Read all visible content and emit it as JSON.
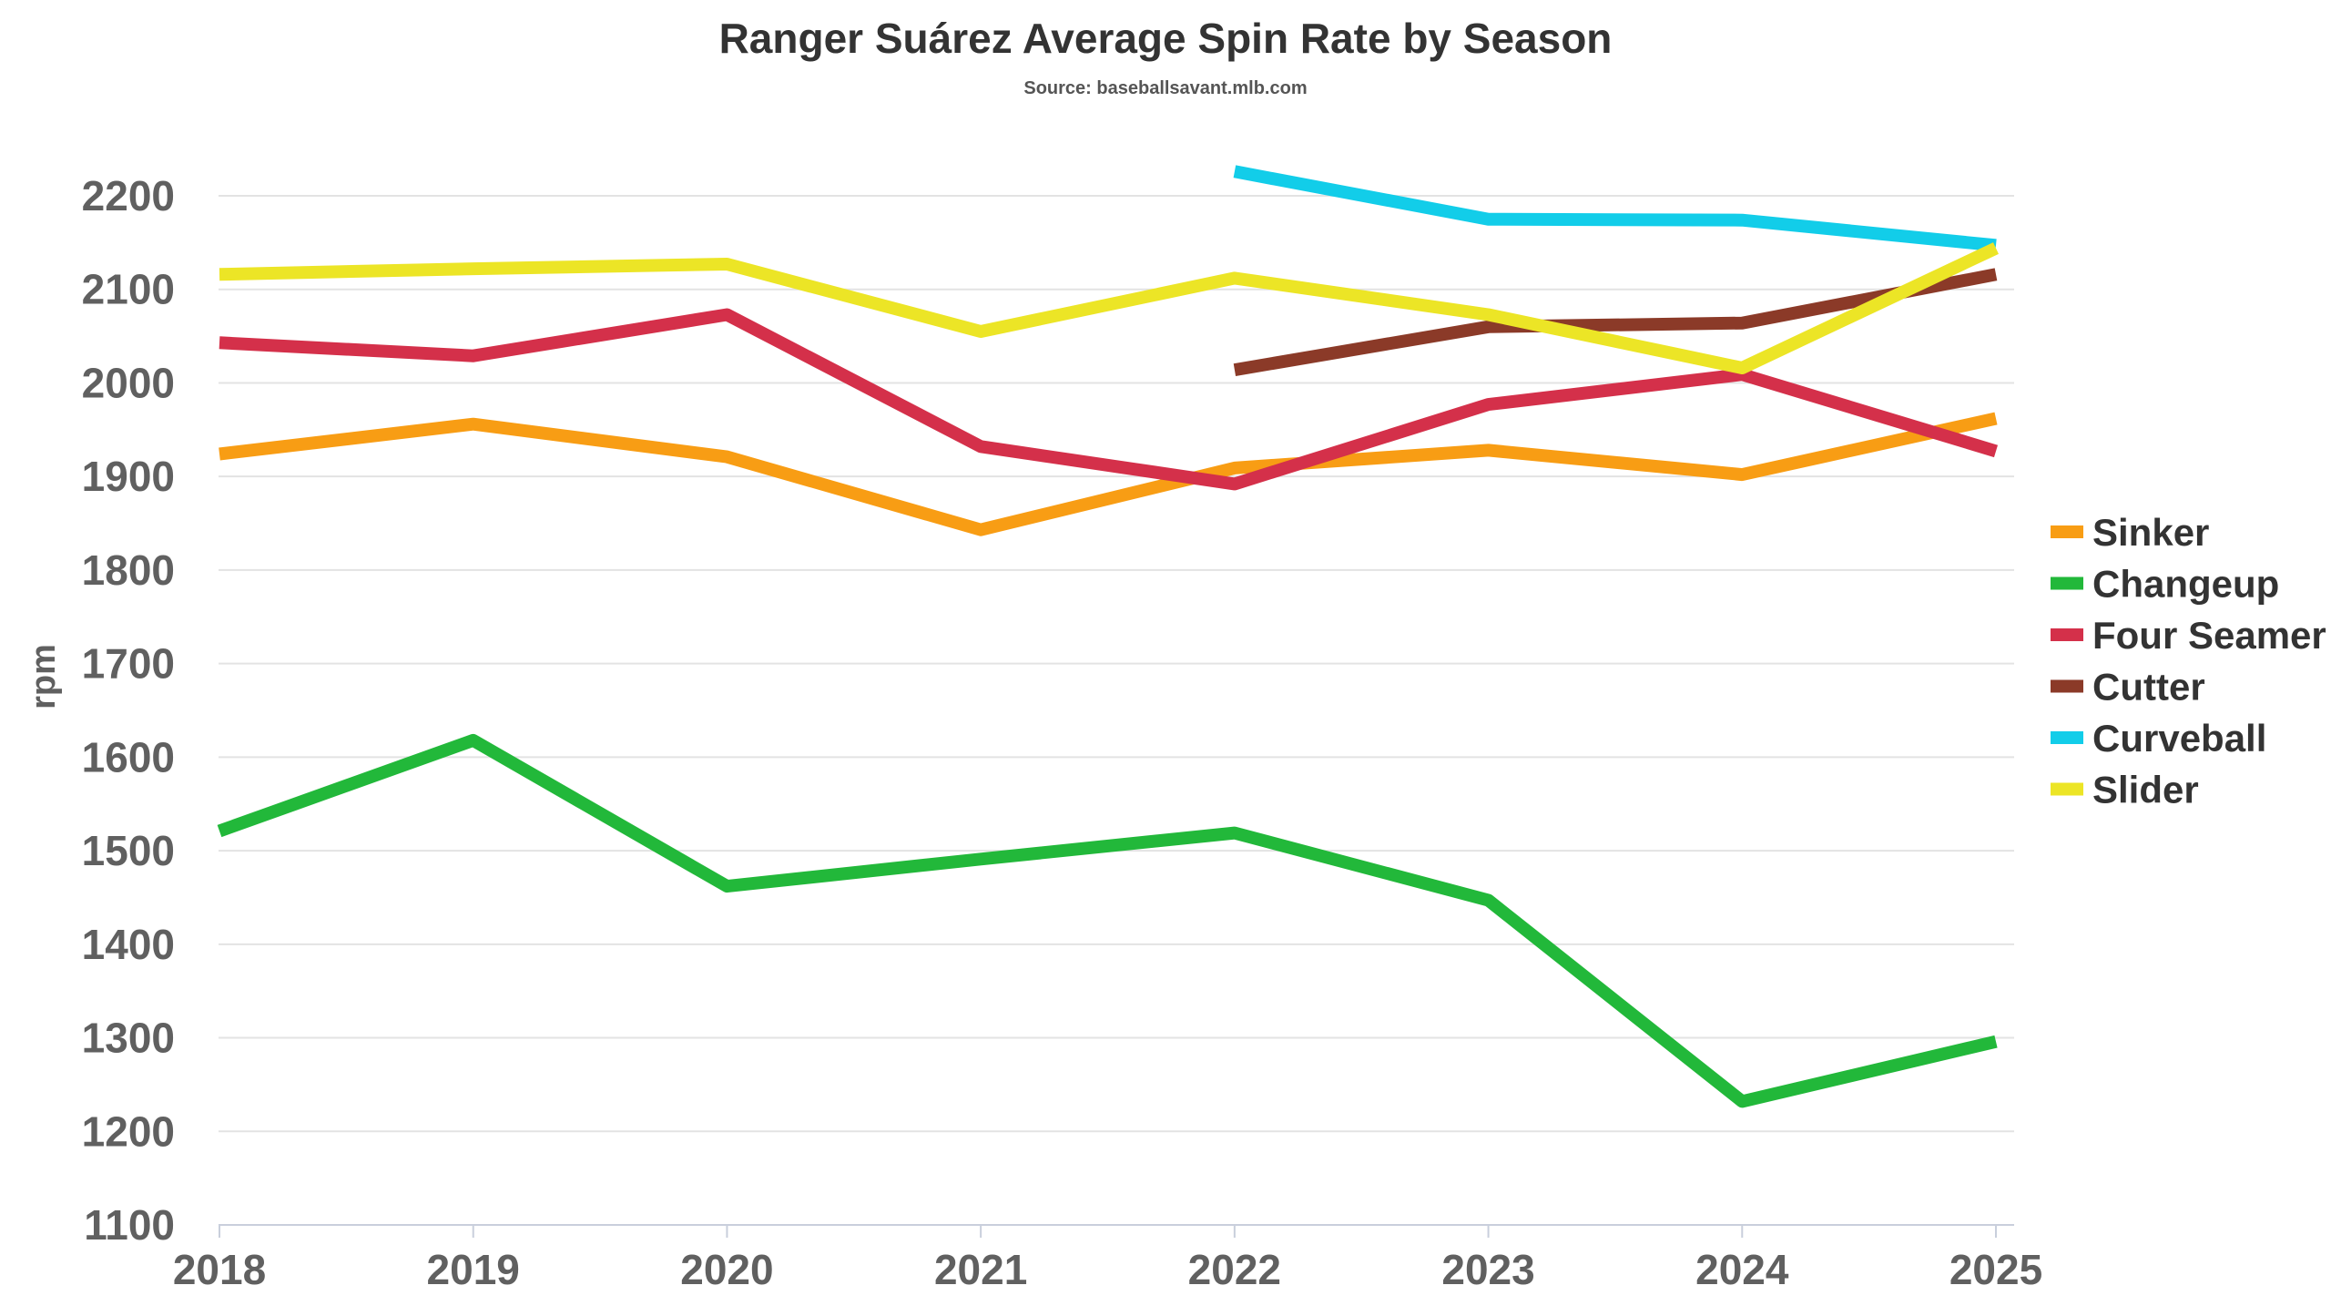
{
  "chart_data": {
    "type": "line",
    "title": "Ranger Suárez Average Spin Rate by Season",
    "subtitle": "Source: baseballsavant.mlb.com",
    "xlabel": "",
    "ylabel": "rpm",
    "x": [
      "2018",
      "2019",
      "2020",
      "2021",
      "2022",
      "2023",
      "2024",
      "2025"
    ],
    "ylim": [
      1100,
      2200
    ],
    "yticks": [
      1100,
      1200,
      1300,
      1400,
      1500,
      1600,
      1700,
      1800,
      1900,
      2000,
      2100,
      2200
    ],
    "grid": true,
    "legend_position": "right",
    "series": [
      {
        "name": "Sinker",
        "color": "#f89d14",
        "values": [
          1924,
          1956,
          1921,
          1843,
          1909,
          1928,
          1902,
          1962
        ]
      },
      {
        "name": "Changeup",
        "color": "#22b83a",
        "values": [
          1521,
          1618,
          1462,
          1491,
          1519,
          1447,
          1232,
          1296
        ]
      },
      {
        "name": "Four Seamer",
        "color": "#d4304a",
        "values": [
          2043,
          2029,
          2073,
          1932,
          1892,
          1977,
          2009,
          1927
        ]
      },
      {
        "name": "Cutter",
        "color": "#8b3a28",
        "values": [
          null,
          null,
          null,
          null,
          2014,
          2060,
          2064,
          2116
        ]
      },
      {
        "name": "Curveball",
        "color": "#12cde9",
        "values": [
          null,
          null,
          null,
          null,
          2226,
          2175,
          2174,
          2147
        ]
      },
      {
        "name": "Slider",
        "color": "#ece526",
        "values": [
          2116,
          2122,
          2127,
          2055,
          2112,
          2073,
          2016,
          2144
        ]
      }
    ]
  }
}
